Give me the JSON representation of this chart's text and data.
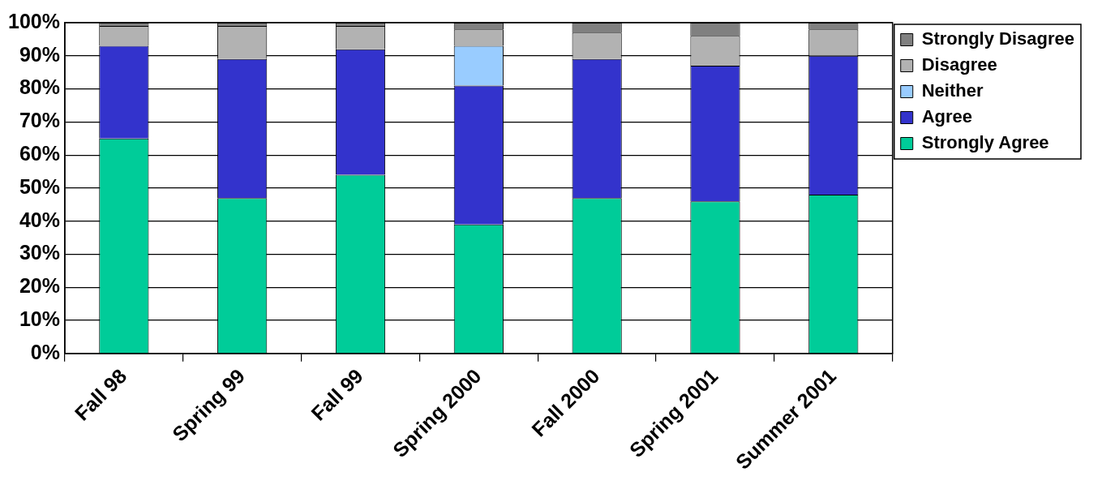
{
  "chart_data": {
    "type": "bar",
    "stacked": true,
    "categories": [
      "Fall 98",
      "Spring 99",
      "Fall 99",
      "Spring 2000",
      "Fall 2000",
      "Spring 2001",
      "Summer 2001"
    ],
    "series": [
      {
        "name": "Strongly Agree",
        "color": "#00cc99",
        "values": [
          65,
          47,
          54,
          39,
          47,
          46,
          48
        ]
      },
      {
        "name": "Agree",
        "color": "#3333cc",
        "values": [
          28,
          42,
          38,
          42,
          42,
          41,
          42
        ]
      },
      {
        "name": "Neither",
        "color": "#99ccff",
        "values": [
          0,
          0,
          0,
          12,
          0,
          0,
          0
        ]
      },
      {
        "name": "Disagree",
        "color": "#b2b2b2",
        "values": [
          6,
          10,
          7,
          5,
          8,
          9,
          8
        ]
      },
      {
        "name": "Strongly Disagree",
        "color": "#808080",
        "values": [
          1,
          1,
          1,
          2,
          3,
          4,
          2
        ]
      }
    ],
    "ylim": [
      0,
      100
    ],
    "yticks": [
      {
        "value": 0,
        "label": "0%"
      },
      {
        "value": 10,
        "label": "10%"
      },
      {
        "value": 20,
        "label": "20%"
      },
      {
        "value": 30,
        "label": "30%"
      },
      {
        "value": 40,
        "label": "40%"
      },
      {
        "value": 50,
        "label": "50%"
      },
      {
        "value": 60,
        "label": "60%"
      },
      {
        "value": 70,
        "label": "70%"
      },
      {
        "value": 80,
        "label": "80%"
      },
      {
        "value": 90,
        "label": "90%"
      },
      {
        "value": 100,
        "label": "100%"
      }
    ],
    "grid": "y",
    "legend": "right"
  }
}
